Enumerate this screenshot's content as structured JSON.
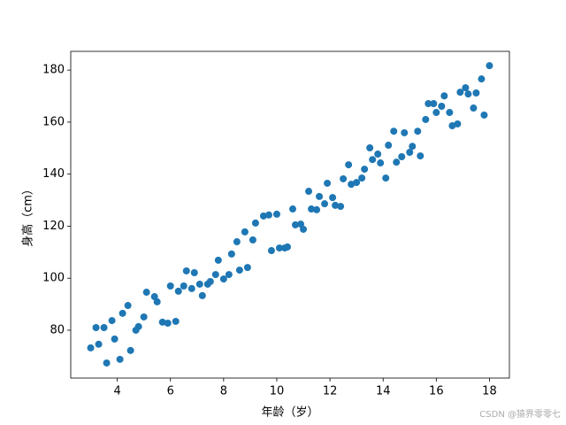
{
  "chart_data": {
    "type": "scatter",
    "x_label": "年龄（岁）",
    "y_label": "身高（cm）",
    "watermark": "CSDN @猿界零零七",
    "color": "#1f77b4",
    "xlim": [
      2.25,
      18.75
    ],
    "xticks": [
      4,
      6,
      8,
      10,
      12,
      14,
      16,
      18
    ],
    "ylim": [
      61.6,
      187.2
    ],
    "yticks": [
      80,
      100,
      120,
      140,
      160,
      180
    ],
    "x": [
      3.0,
      3.2,
      3.3,
      3.5,
      3.6,
      3.8,
      3.9,
      4.1,
      4.2,
      4.4,
      4.5,
      4.7,
      4.8,
      5.0,
      5.1,
      5.4,
      5.5,
      5.7,
      5.9,
      6.0,
      6.2,
      6.3,
      6.5,
      6.6,
      6.8,
      6.9,
      7.1,
      7.2,
      7.4,
      7.5,
      7.7,
      7.8,
      8.0,
      8.2,
      8.3,
      8.5,
      8.6,
      8.8,
      8.9,
      9.1,
      9.2,
      9.5,
      9.7,
      9.8,
      10.0,
      10.1,
      10.3,
      10.4,
      10.6,
      10.7,
      10.9,
      11.0,
      11.2,
      11.3,
      11.5,
      11.6,
      11.8,
      11.9,
      12.1,
      12.2,
      12.4,
      12.5,
      12.7,
      12.8,
      13.0,
      13.2,
      13.3,
      13.5,
      13.6,
      13.8,
      13.9,
      14.1,
      14.2,
      14.4,
      14.5,
      14.7,
      14.8,
      15.0,
      15.1,
      15.3,
      15.4,
      15.6,
      15.7,
      15.9,
      16.0,
      16.2,
      16.3,
      16.5,
      16.6,
      16.8,
      16.9,
      17.1,
      17.2,
      17.4,
      17.5,
      17.7,
      17.8,
      18.0
    ],
    "values": [
      73.2,
      81.0,
      74.6,
      81.0,
      67.4,
      83.7,
      76.6,
      68.8,
      86.5,
      89.5,
      72.2,
      80.0,
      81.4,
      85.1,
      94.6,
      92.9,
      90.9,
      83.1,
      82.7,
      97.0,
      83.4,
      95.0,
      97.0,
      102.8,
      96.0,
      102.1,
      97.7,
      93.3,
      97.7,
      98.7,
      101.4,
      106.9,
      99.7,
      101.4,
      109.3,
      114.0,
      103.1,
      117.8,
      104.1,
      114.7,
      121.2,
      123.9,
      124.3,
      110.6,
      124.6,
      111.6,
      111.6,
      112.0,
      126.6,
      120.5,
      120.8,
      118.8,
      133.4,
      126.6,
      126.3,
      131.4,
      128.6,
      136.5,
      131.0,
      128.0,
      127.6,
      138.2,
      143.6,
      136.1,
      136.8,
      138.5,
      141.9,
      150.1,
      145.6,
      147.7,
      144.3,
      138.5,
      151.1,
      156.5,
      144.6,
      146.7,
      155.9,
      148.4,
      150.7,
      156.5,
      147.0,
      161.0,
      167.1,
      167.1,
      163.7,
      166.1,
      170.1,
      163.7,
      158.6,
      159.3,
      171.5,
      173.2,
      170.8,
      165.4,
      171.2,
      176.6,
      162.7,
      181.7
    ]
  }
}
